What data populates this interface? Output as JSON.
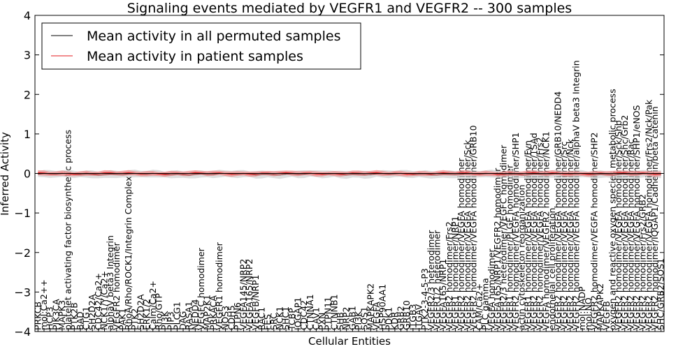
{
  "chart_data": {
    "type": "line",
    "title": "Signaling events mediated by VEGFR1 and VEGFR2 -- 300 samples",
    "xlabel": "Cellular Entities",
    "ylabel": "Inferred Activity",
    "ylim": [
      -4,
      4
    ],
    "yticks": [
      -4,
      -3,
      -2,
      -1,
      0,
      1,
      2,
      3,
      4
    ],
    "ytick_labels": [
      "−4",
      "−3",
      "−2",
      "−1",
      "0",
      "1",
      "2",
      "3",
      "4"
    ],
    "grid": false,
    "legend_position": "top-left",
    "series": [
      {
        "name": "Mean activity in all permuted samples",
        "color": "#000000",
        "band_color": "#c8c8c8",
        "level": -0.02,
        "band": 0.09
      },
      {
        "name": "Mean activity in patient samples",
        "color": "#e31a1c",
        "band_color": "#f08080",
        "level": 0.0,
        "band": 0.06
      }
    ],
    "categories": [
      "PRKCB",
      "mol:Ca2++",
      "HCP3",
      "PIK3CA",
      "MAPK3",
      "platelet activating factor biosynthetic process",
      "PTK2B",
      "BAD",
      "CTG1",
      "SH2D2A",
      "CDC42/Ca2+",
      "NCK1/Y/Ca2+",
      "alphaV beta3 Integrin",
      "VEGFR2 homodimer",
      "PAK1",
      "RhoA/Rho/ROCK1/Integrin Complex",
      "PTK2",
      "SH2D2A",
      "ERK1/2",
      "Calm/Ca2+",
      "Rho/GTP",
      "PI3K",
      "PIP3",
      "PLCG1",
      "DAG",
      "RASA1",
      "NEDD4",
      "VEGFC homodimer",
      "MAP2K1",
      "PRKACA",
      "VEGFR1 homodimer",
      "NOS3",
      "CDH5",
      "PTPN6",
      "VEGFA145/NRP2",
      "VEGFA165/NRP2",
      "VEGFB/NRP1",
      "RAC1",
      "FES",
      "SRC",
      "NCK1",
      "SHC1",
      "TCBP",
      "IQGAP1",
      "CDC42",
      "CTNNA1",
      "CAV1",
      "PXN",
      "PTPN11",
      "CTNNB1",
      "SHB",
      "NRP2",
      "GAB1",
      "PI3K",
      "SOS1",
      "MAPKAPK2",
      "VEGFA",
      "HSP90AA1",
      "PDK1",
      "KDR",
      "GRB2",
      "GRB10",
      "ITGB3",
      "ITGAV",
      "PTK2-3-4-5-P3",
      "VEGFR2/3 heterodimer",
      "VEGFR1/2 heterodimer",
      "VEGFA165/NRP1",
      "VEGFR2 homodimer/Frs2",
      "VEGFR1 homodimer/NRP1",
      "VEGFR2 homodimer/VEGFA homodimer",
      "VEGFR2 homodimer/VEGFA homodimer/Sck",
      "VEGFR2 homodimer/VEGFA homodimer/GRB10",
      "CAM/Ca2+",
      "PLC gamma",
      "VEGFA homodimer",
      "VEGFA165/NRP1/VEGFR2 homodimer",
      "VEGFR2/3 heterodimer/VEGFC homodimer",
      "VEGFR1 homodimer/PLGF homodimer",
      "VEGFR2 homodimer/VEGFA homodimer/SHP1",
      "actin cytoskeleton reorganization",
      "VEGFR1 homodimer/VEGFA homodimer/Fyn",
      "VEGFR2 homodimer/VEGFA homodimer/TSAd",
      "VEGFR2 homodimer/VEGFA homodimer/Frs2",
      "VEGFA homodimer/VEGFR2 homodimer/NCK1",
      "endothelial cell proliferation",
      "VEGFR2 homodimer/VEGFA homodimer/GRB10/NEDD4",
      "VEGFR2 homodimer/VEGFA homodimer/Src",
      "VEGFR2 homodimer/VEGFA homodimer/Nck",
      "VEGFR2 homodimer/VEGFA homodimer/alphaV beta3 Integrin",
      "mol:NADP",
      "mol:NO",
      "VEGFR2 homodimer/VEGFA homodimer/SHP2",
      "MAPKAPK2",
      "VEGFB",
      "oxygen and reactive oxygen species metabolic process",
      "VEGFR2 homodimer/VEGFA homodimer/Sck/Shb",
      "VEGFR2 homodimer/VEGFA homodimer/Shc/Grb2",
      "VEGFR2 homodimer/VEGFA homodimer/Rac",
      "VEGFR2 homodimer/VEGFA homodimer/SHP1/eNOS",
      "VEGFR2 homodimer/Frs2/GRB2",
      "VEGFR2 homodimer/VEGFA homodimer/Frs2/Nck/Pak",
      "VEGFR2 homodimer/IQGAP1/Cadherin/beta catenin",
      "SHC/GRB2/SOS1"
    ]
  }
}
